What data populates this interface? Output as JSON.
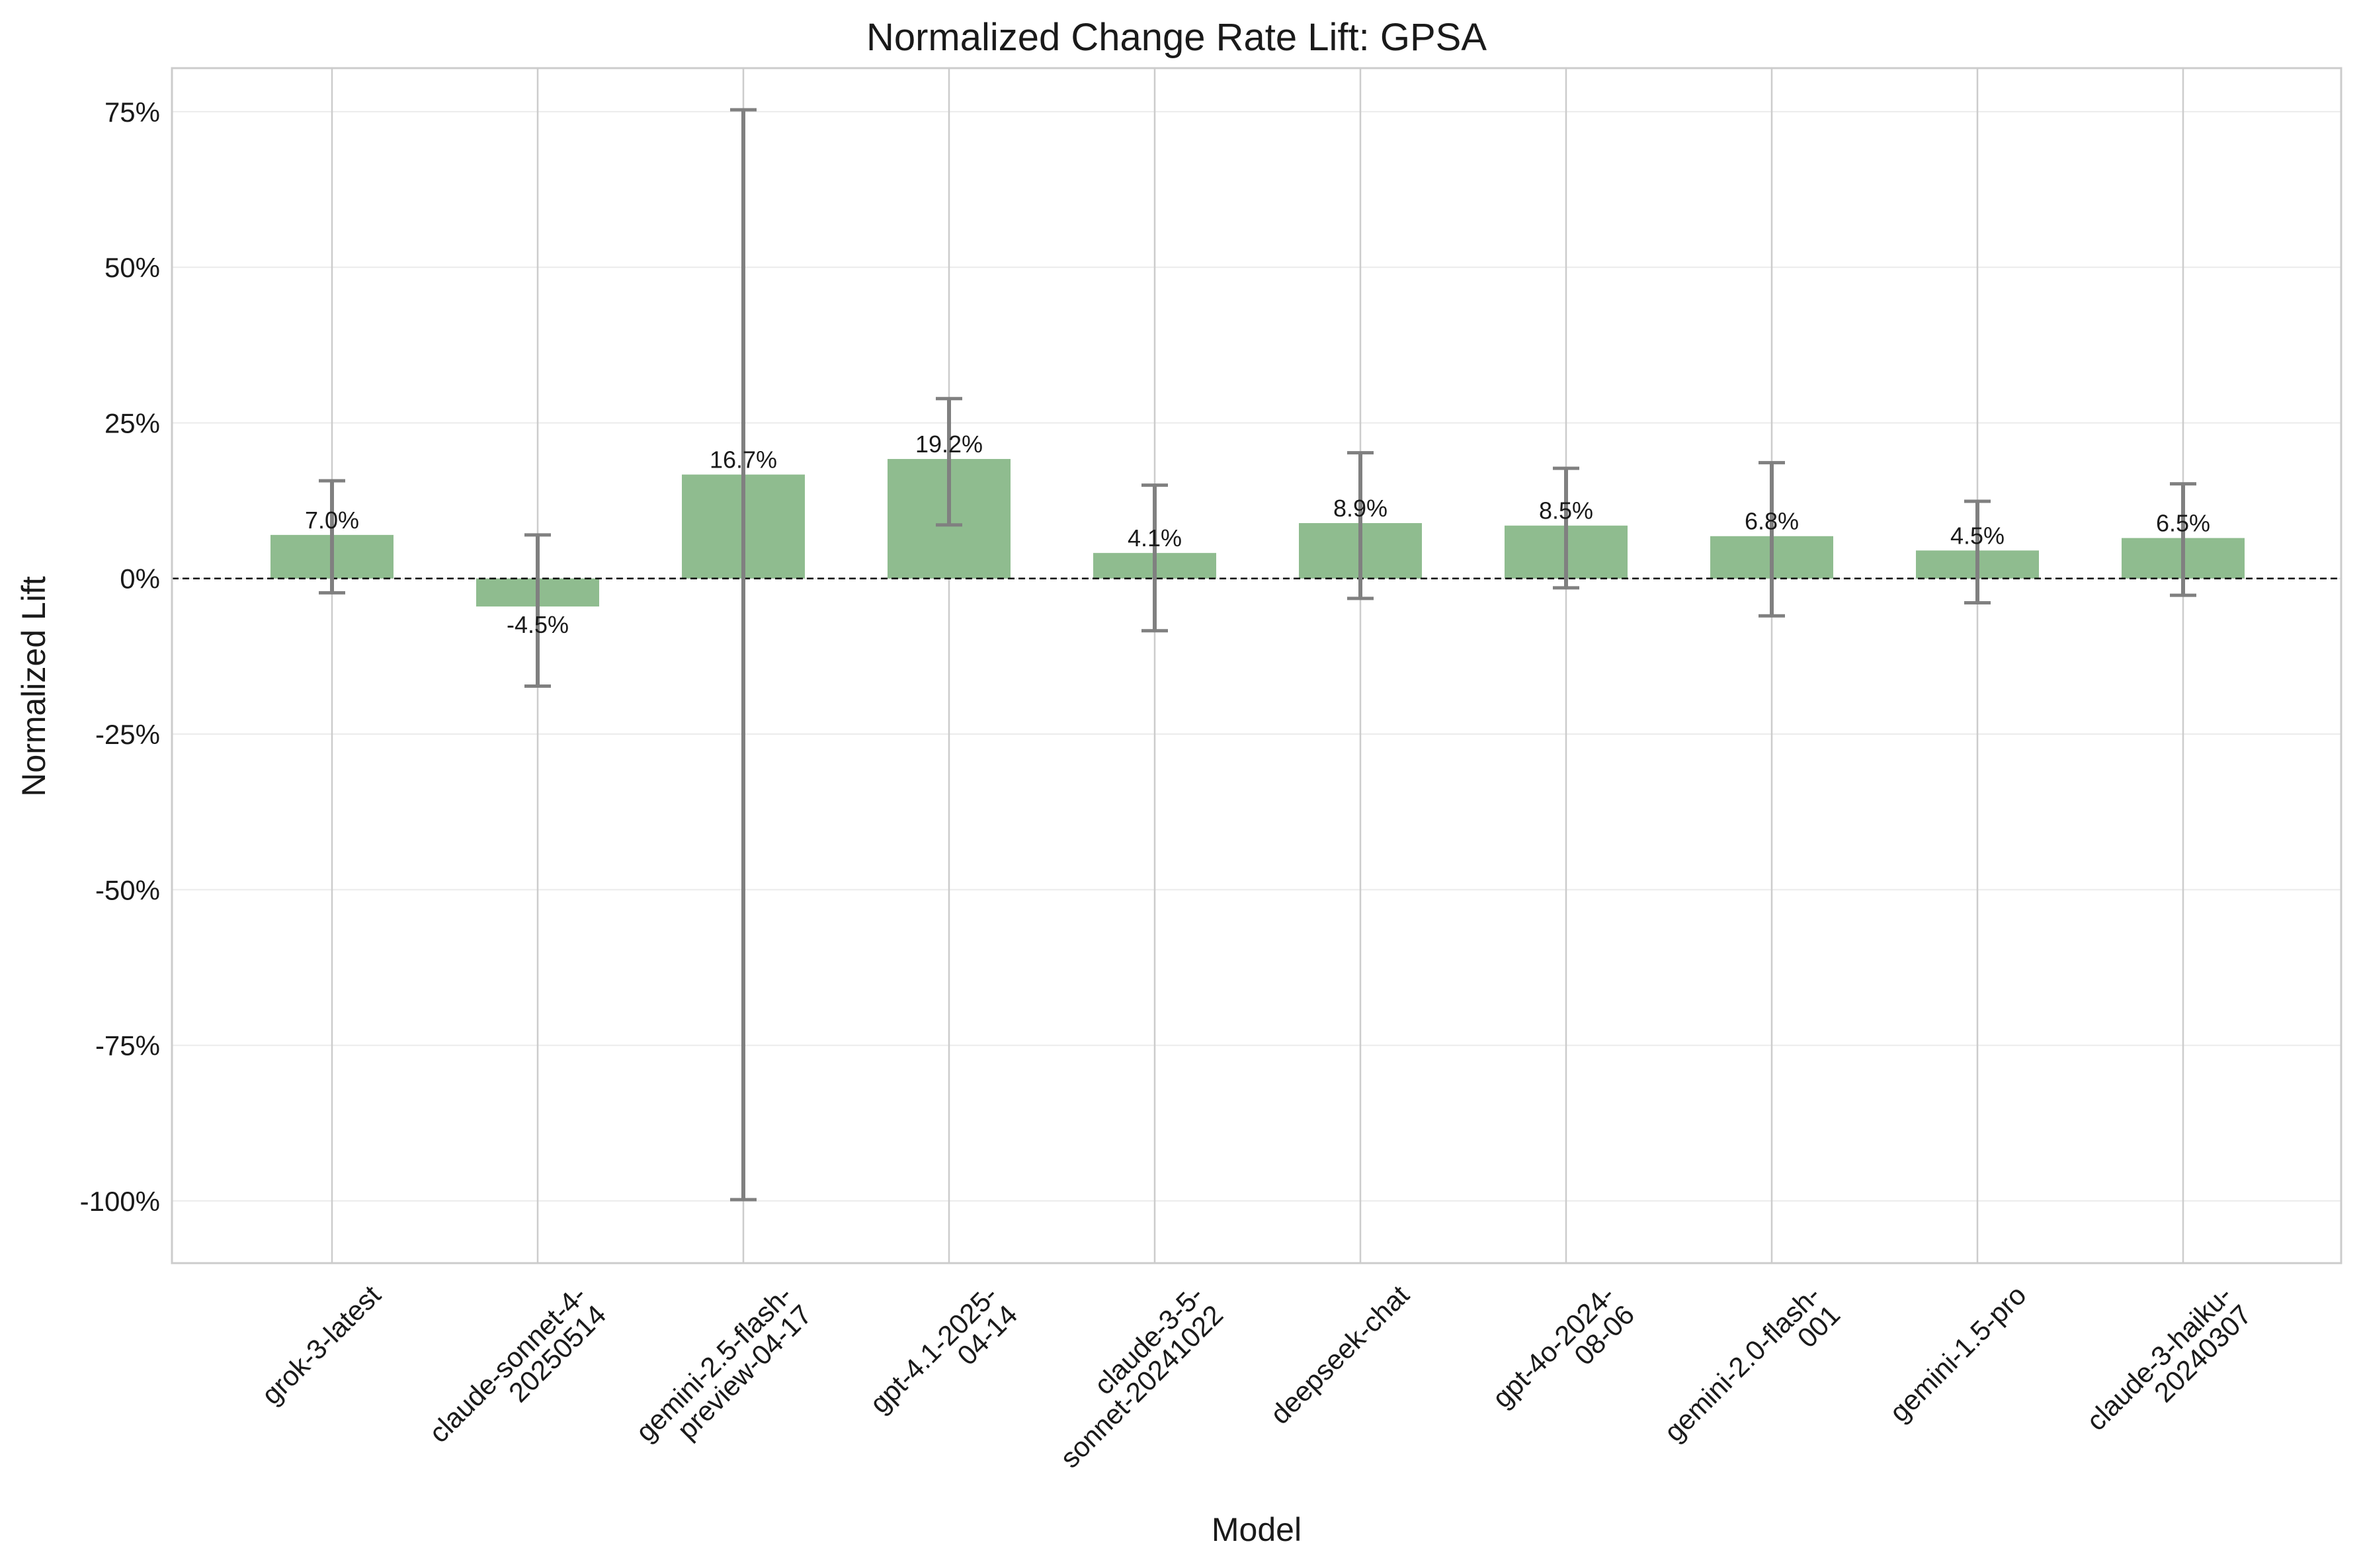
{
  "chart_data": {
    "type": "bar",
    "title": "Normalized Change Rate Lift: GPSA",
    "xlabel": "Model",
    "ylabel": "Normalized Lift",
    "ylim": [
      -110,
      82
    ],
    "yticks": [
      75,
      50,
      25,
      0,
      -25,
      -50,
      -75,
      -100
    ],
    "ytick_labels": [
      "75%",
      "50%",
      "25%",
      "0%",
      "-25%",
      "-50%",
      "-75%",
      "-100%"
    ],
    "grid": true,
    "reference_line": 0,
    "bar_color": "#8fbc8f",
    "errorbar_color": "#808080",
    "categories": [
      [
        "grok-3-latest"
      ],
      [
        "claude-sonnet-4-",
        "20250514"
      ],
      [
        "gemini-2.5-flash-",
        "preview-04-17"
      ],
      [
        "gpt-4.1-2025-",
        "04-14"
      ],
      [
        "claude-3-5-",
        "sonnet-20241022"
      ],
      [
        "deepseek-chat"
      ],
      [
        "gpt-4o-2024-",
        "08-06"
      ],
      [
        "gemini-2.0-flash-",
        "001"
      ],
      [
        "gemini-1.5-pro"
      ],
      [
        "claude-3-haiku-",
        "20240307"
      ]
    ],
    "values": [
      7.0,
      -4.5,
      16.7,
      19.2,
      4.1,
      8.9,
      8.5,
      6.8,
      4.5,
      6.5
    ],
    "data_labels": [
      "7.0%",
      "-4.5%",
      "16.7%",
      "19.2%",
      "4.1%",
      "8.9%",
      "8.5%",
      "6.8%",
      "4.5%",
      "6.5%"
    ],
    "error_low": [
      -2.3,
      -17.3,
      -99.8,
      8.6,
      -8.4,
      -3.2,
      -1.5,
      -6.0,
      -3.9,
      -2.7
    ],
    "error_high": [
      15.7,
      7.0,
      75.3,
      28.9,
      15.0,
      20.2,
      17.7,
      18.6,
      12.4,
      15.2
    ]
  }
}
